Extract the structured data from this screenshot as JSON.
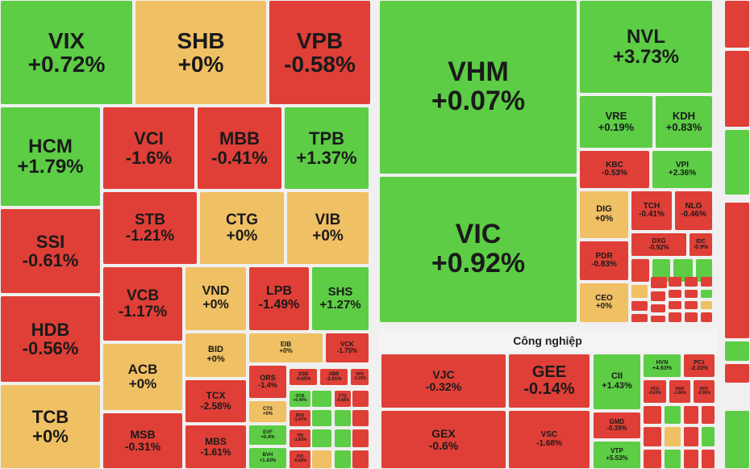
{
  "sector_title": "Công nghiệp",
  "tiles": [
    {
      "ticker": "VIX",
      "change": "+0.72%"
    },
    {
      "ticker": "SHB",
      "change": "+0%"
    },
    {
      "ticker": "VPB",
      "change": "-0.58%"
    },
    {
      "ticker": "HCM",
      "change": "+1.79%"
    },
    {
      "ticker": "VCI",
      "change": "-1.6%"
    },
    {
      "ticker": "MBB",
      "change": "-0.41%"
    },
    {
      "ticker": "TPB",
      "change": "+1.37%"
    },
    {
      "ticker": "SSI",
      "change": "-0.61%"
    },
    {
      "ticker": "STB",
      "change": "-1.21%"
    },
    {
      "ticker": "CTG",
      "change": "+0%"
    },
    {
      "ticker": "VIB",
      "change": "+0%"
    },
    {
      "ticker": "HDB",
      "change": "-0.56%"
    },
    {
      "ticker": "VCB",
      "change": "-1.17%"
    },
    {
      "ticker": "VND",
      "change": "+0%"
    },
    {
      "ticker": "LPB",
      "change": "-1.49%"
    },
    {
      "ticker": "SHS",
      "change": "+1.27%"
    },
    {
      "ticker": "TCB",
      "change": "+0%"
    },
    {
      "ticker": "ACB",
      "change": "+0%"
    },
    {
      "ticker": "MSB",
      "change": "-0.31%"
    },
    {
      "ticker": "BID",
      "change": "+0%"
    },
    {
      "ticker": "EIB",
      "change": "+0%"
    },
    {
      "ticker": "VCK",
      "change": "-1.75%"
    },
    {
      "ticker": "TCX",
      "change": "-2.58%"
    },
    {
      "ticker": "MBS",
      "change": "-1.61%"
    },
    {
      "ticker": "ORS",
      "change": "-1.4%"
    },
    {
      "ticker": "SSB",
      "change": "-0.65%"
    },
    {
      "ticker": "ABB",
      "change": "-2.91%"
    },
    {
      "ticker": "VPX",
      "change": "-1.15%"
    },
    {
      "ticker": "CTS",
      "change": "+0%"
    },
    {
      "ticker": "OCB",
      "change": "+0.49%"
    },
    {
      "ticker": "FTS",
      "change": "-0.45%"
    },
    {
      "ticker": "BVS",
      "change": "-1.47%"
    },
    {
      "ticker": "EVF",
      "change": "+0.4%"
    },
    {
      "ticker": "TIN",
      "change": "-1.83%"
    },
    {
      "ticker": "BVH",
      "change": "+1.43%"
    },
    {
      "ticker": "PVI",
      "change": "-0.54%"
    },
    {
      "ticker": "VHM",
      "change": "+0.07%"
    },
    {
      "ticker": "VIC",
      "change": "+0.92%"
    },
    {
      "ticker": "NVL",
      "change": "+3.73%"
    },
    {
      "ticker": "VRE",
      "change": "+0.19%"
    },
    {
      "ticker": "KDH",
      "change": "+0.83%"
    },
    {
      "ticker": "KBC",
      "change": "-0.53%"
    },
    {
      "ticker": "VPI",
      "change": "+2.36%"
    },
    {
      "ticker": "DIG",
      "change": "+0%"
    },
    {
      "ticker": "TCH",
      "change": "-0.41%"
    },
    {
      "ticker": "NLG",
      "change": "-0.46%"
    },
    {
      "ticker": "PDR",
      "change": "-0.83%"
    },
    {
      "ticker": "DXG",
      "change": "-0.92%"
    },
    {
      "ticker": "IDC",
      "change": "-0.9%"
    },
    {
      "ticker": "CEO",
      "change": "+0%"
    },
    {
      "ticker": "VJC",
      "change": "-0.32%"
    },
    {
      "ticker": "GEE",
      "change": "-0.14%"
    },
    {
      "ticker": "GEX",
      "change": "-0.6%"
    },
    {
      "ticker": "VSC",
      "change": "-1.68%"
    },
    {
      "ticker": "CII",
      "change": "+1.43%"
    },
    {
      "ticker": "HVN",
      "change": "+4.63%"
    },
    {
      "ticker": "PC1",
      "change": "-2.33%"
    },
    {
      "ticker": "VCG",
      "change": "-0.63%"
    },
    {
      "ticker": "HAH",
      "change": "-1.86%"
    },
    {
      "ticker": "HHV",
      "change": "-0.96%"
    },
    {
      "ticker": "GMD",
      "change": "-0.39%"
    },
    {
      "ticker": "VTP",
      "change": "+5.53%"
    }
  ]
}
